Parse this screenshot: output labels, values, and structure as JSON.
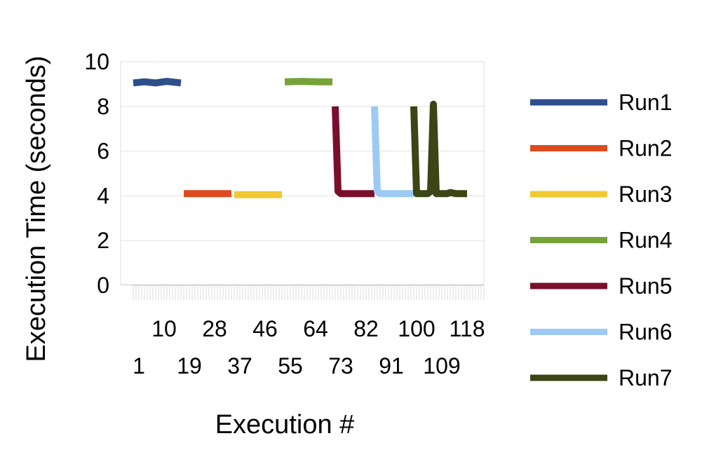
{
  "chart_data": {
    "type": "line",
    "xlabel": "Execution #",
    "ylabel": "Execution Time (seconds)",
    "ylim": [
      0,
      10
    ],
    "yticks": [
      "0",
      "2",
      "4",
      "6",
      "8",
      "10"
    ],
    "xlim": [
      1,
      126
    ],
    "x_tick_labels": [
      {
        "x": 1,
        "label": "1",
        "row": 2
      },
      {
        "x": 10,
        "label": "10",
        "row": 1
      },
      {
        "x": 19,
        "label": "19",
        "row": 2
      },
      {
        "x": 28,
        "label": "28",
        "row": 1
      },
      {
        "x": 37,
        "label": "37",
        "row": 2
      },
      {
        "x": 46,
        "label": "46",
        "row": 1
      },
      {
        "x": 55,
        "label": "55",
        "row": 2
      },
      {
        "x": 64,
        "label": "64",
        "row": 1
      },
      {
        "x": 73,
        "label": "73",
        "row": 2
      },
      {
        "x": 82,
        "label": "82",
        "row": 1
      },
      {
        "x": 91,
        "label": "91",
        "row": 2
      },
      {
        "x": 100,
        "label": "100",
        "row": 1
      },
      {
        "x": 109,
        "label": "109",
        "row": 2
      },
      {
        "x": 118,
        "label": "118",
        "row": 1
      }
    ],
    "grid": true,
    "legend_position": "right",
    "series": [
      {
        "name": "Run1",
        "color": "#2e4e8c",
        "points": [
          [
            1,
            9.05
          ],
          [
            5,
            9.1
          ],
          [
            9,
            9.05
          ],
          [
            13,
            9.12
          ],
          [
            18,
            9.05
          ]
        ]
      },
      {
        "name": "Run2",
        "color": "#dd4a1e",
        "points": [
          [
            19,
            4.1
          ],
          [
            25,
            4.1
          ],
          [
            31,
            4.1
          ],
          [
            36,
            4.1
          ]
        ]
      },
      {
        "name": "Run3",
        "color": "#f2c933",
        "points": [
          [
            37,
            4.05
          ],
          [
            43,
            4.05
          ],
          [
            49,
            4.05
          ],
          [
            54,
            4.05
          ]
        ]
      },
      {
        "name": "Run4",
        "color": "#77a23a",
        "points": [
          [
            55,
            9.1
          ],
          [
            61,
            9.12
          ],
          [
            67,
            9.1
          ],
          [
            72,
            9.1
          ]
        ]
      },
      {
        "name": "Run5",
        "color": "#7a0f2b",
        "points": [
          [
            73,
            8.0
          ],
          [
            74,
            4.2
          ],
          [
            75,
            4.1
          ],
          [
            78,
            4.1
          ],
          [
            81,
            4.1
          ],
          [
            83,
            4.1
          ],
          [
            86,
            4.1
          ],
          [
            87,
            4.1
          ]
        ]
      },
      {
        "name": "Run6",
        "color": "#9ccaf4",
        "points": [
          [
            87,
            8.0
          ],
          [
            88,
            4.2
          ],
          [
            89,
            4.1
          ],
          [
            92,
            4.1
          ],
          [
            95,
            4.1
          ],
          [
            98,
            4.1
          ],
          [
            101,
            4.1
          ]
        ]
      },
      {
        "name": "Run7",
        "color": "#3b4515",
        "points": [
          [
            101,
            8.0
          ],
          [
            102,
            4.1
          ],
          [
            104,
            4.1
          ],
          [
            106,
            4.1
          ],
          [
            107,
            4.2
          ],
          [
            108,
            8.1
          ],
          [
            109,
            4.1
          ],
          [
            111,
            4.1
          ],
          [
            113,
            4.1
          ],
          [
            114,
            4.15
          ],
          [
            116,
            4.1
          ],
          [
            118,
            4.1
          ],
          [
            120,
            4.1
          ]
        ]
      }
    ]
  }
}
